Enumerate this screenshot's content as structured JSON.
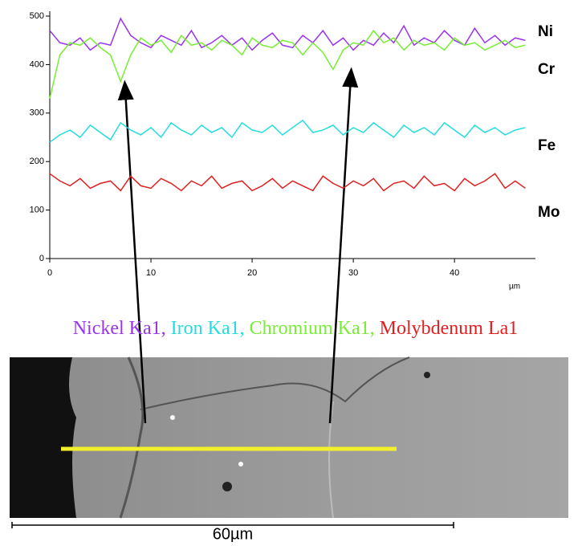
{
  "chart_data": {
    "type": "line",
    "x": [
      0,
      1,
      2,
      3,
      4,
      5,
      6,
      7,
      8,
      9,
      10,
      11,
      12,
      13,
      14,
      15,
      16,
      17,
      18,
      19,
      20,
      21,
      22,
      23,
      24,
      25,
      26,
      27,
      28,
      29,
      30,
      31,
      32,
      33,
      34,
      35,
      36,
      37,
      38,
      39,
      40,
      41,
      42,
      43,
      44,
      45,
      46,
      47
    ],
    "series": [
      {
        "name": "Nickel Ka1,",
        "label": "Ni",
        "color": "#9933ee",
        "values": [
          470,
          445,
          440,
          455,
          430,
          445,
          440,
          495,
          460,
          445,
          435,
          460,
          450,
          440,
          470,
          435,
          445,
          460,
          440,
          455,
          430,
          450,
          465,
          440,
          435,
          460,
          445,
          470,
          440,
          455,
          430,
          450,
          440,
          465,
          445,
          480,
          440,
          455,
          445,
          470,
          450,
          440,
          475,
          445,
          460,
          440,
          455,
          450
        ]
      },
      {
        "name": "Iron Ka1,",
        "label": "Fe",
        "color": "#22dddd",
        "values": [
          240,
          255,
          265,
          250,
          275,
          260,
          245,
          280,
          265,
          255,
          270,
          250,
          280,
          265,
          255,
          275,
          260,
          270,
          250,
          280,
          265,
          260,
          275,
          255,
          270,
          285,
          260,
          265,
          275,
          255,
          270,
          260,
          280,
          265,
          250,
          275,
          260,
          270,
          255,
          280,
          265,
          250,
          275,
          260,
          270,
          255,
          265,
          270
        ]
      },
      {
        "name": "Chromium Ka1,",
        "label": "Cr",
        "color": "#77ee33",
        "values": [
          330,
          420,
          445,
          440,
          455,
          435,
          420,
          365,
          420,
          455,
          440,
          450,
          425,
          460,
          440,
          445,
          430,
          450,
          440,
          420,
          455,
          440,
          435,
          450,
          445,
          420,
          445,
          425,
          390,
          430,
          445,
          440,
          470,
          445,
          455,
          430,
          450,
          440,
          445,
          430,
          455,
          440,
          445,
          430,
          440,
          450,
          435,
          440
        ]
      },
      {
        "name": "Molybdenum La1",
        "label": "Mo",
        "color": "#e02020",
        "values": [
          175,
          160,
          150,
          165,
          145,
          155,
          160,
          140,
          170,
          150,
          145,
          165,
          155,
          140,
          160,
          150,
          170,
          145,
          155,
          160,
          140,
          150,
          165,
          145,
          160,
          150,
          140,
          170,
          155,
          145,
          160,
          150,
          165,
          140,
          155,
          160,
          145,
          170,
          150,
          155,
          140,
          165,
          150,
          160,
          175,
          145,
          160,
          145
        ]
      }
    ],
    "x_label": "µm",
    "xlim": [
      0,
      48
    ],
    "xticks": [
      0,
      10,
      20,
      30,
      40
    ],
    "ylim": [
      0,
      510
    ],
    "yticks": [
      0,
      100,
      200,
      300,
      400,
      500
    ],
    "scale_bar": "60µm"
  }
}
